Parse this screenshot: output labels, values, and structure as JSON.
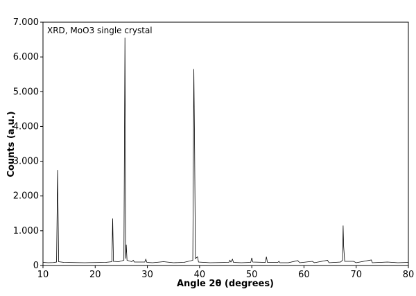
{
  "chart_data": {
    "type": "line",
    "annotation": "XRD, MoO3 single crystal",
    "xlabel": "Angle 2θ (degrees)",
    "ylabel": "Counts (a.u.)",
    "color": "#000000",
    "xlim": [
      10,
      80
    ],
    "ylim": [
      0,
      7000
    ],
    "xticks": [
      10,
      20,
      30,
      40,
      50,
      60,
      70,
      80
    ],
    "yticks": [
      0,
      {
        "value": 1000,
        "label": "1.000"
      },
      {
        "value": 2000,
        "label": "2.000"
      },
      {
        "value": 3000,
        "label": "3.000"
      },
      {
        "value": 4000,
        "label": "4.000"
      },
      {
        "value": 5000,
        "label": "5.000"
      },
      {
        "value": 6000,
        "label": "6.000"
      },
      {
        "value": 7000,
        "label": "7.000"
      }
    ],
    "grid": false,
    "x": [
      10,
      11,
      12,
      12.6,
      12.8,
      13.0,
      14,
      16,
      18,
      20,
      22,
      23.2,
      23.35,
      23.5,
      24.5,
      25.5,
      25.7,
      25.85,
      25.95,
      26.1,
      27,
      27.3,
      27.5,
      29.5,
      29.7,
      29.9,
      31,
      33.1,
      35,
      37,
      38.7,
      38.9,
      39.05,
      39.2,
      39.6,
      39.8,
      42,
      45.6,
      45.8,
      46,
      46.3,
      46.5,
      48,
      49.8,
      50,
      50.2,
      52.6,
      52.8,
      53,
      55,
      55.2,
      55.4,
      57,
      58.8,
      59.2,
      61.6,
      62,
      64.5,
      64.8,
      67,
      67.4,
      67.5,
      67.6,
      67.8,
      69.5,
      70,
      72.9,
      73.1,
      76,
      78,
      80
    ],
    "values": [
      90,
      80,
      85,
      100,
      2750,
      110,
      90,
      85,
      80,
      85,
      90,
      110,
      1350,
      120,
      110,
      150,
      6550,
      200,
      600,
      150,
      110,
      150,
      100,
      100,
      180,
      90,
      80,
      110,
      80,
      90,
      150,
      5650,
      3300,
      200,
      250,
      100,
      80,
      90,
      150,
      100,
      180,
      90,
      80,
      90,
      220,
      100,
      90,
      250,
      90,
      90,
      120,
      80,
      80,
      140,
      80,
      120,
      80,
      150,
      80,
      100,
      150,
      1150,
      550,
      120,
      120,
      80,
      160,
      80,
      100,
      80,
      90
    ]
  }
}
